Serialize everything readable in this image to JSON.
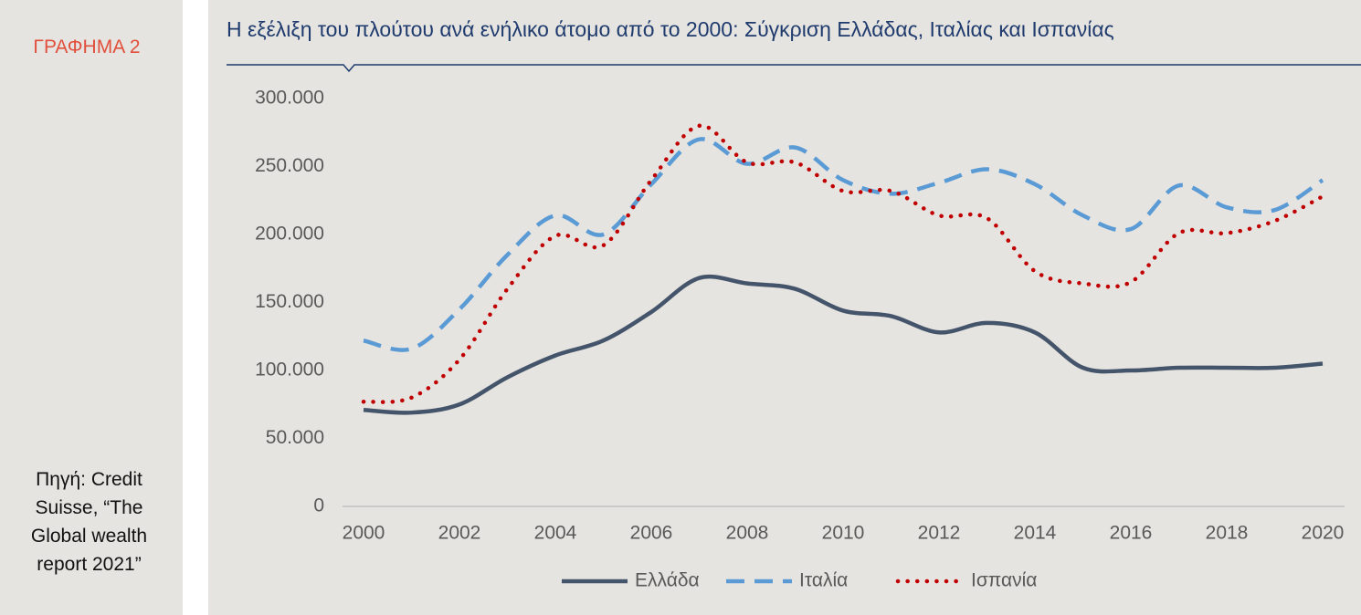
{
  "chart_data": {
    "type": "line",
    "label": "ΓΡΑΦΗΜΑ 2",
    "title": "Η εξέλιξη του πλούτου ανά ενήλικο άτομο από το 2000: Σύγκριση Ελλάδας, Ιταλίας και Ισπανίας",
    "source": "Πηγή: Credit Suisse, “The Global wealth report 2021”",
    "x": [
      2000,
      2001,
      2002,
      2003,
      2004,
      2005,
      2006,
      2007,
      2008,
      2009,
      2010,
      2011,
      2012,
      2013,
      2014,
      2015,
      2016,
      2017,
      2018,
      2019,
      2020
    ],
    "xlim": [
      2000,
      2020
    ],
    "xticks": [
      2000,
      2002,
      2004,
      2006,
      2008,
      2010,
      2012,
      2014,
      2016,
      2018,
      2020
    ],
    "ylim": [
      0,
      300000
    ],
    "yticks": [
      0,
      {
        "value": 50000,
        "label": "50.000"
      },
      {
        "value": 100000,
        "label": "100.000"
      },
      {
        "value": 150000,
        "label": "150.000"
      },
      {
        "value": 200000,
        "label": "200.000"
      },
      {
        "value": 250000,
        "label": "250.000"
      },
      {
        "value": 300000,
        "label": "300.000"
      }
    ],
    "grid": false,
    "legend": "bottom",
    "series": [
      {
        "name": "Ελλάδα",
        "color": "#44546a",
        "dash": "solid",
        "values": [
          71000,
          69000,
          75000,
          95000,
          111000,
          122000,
          143000,
          168000,
          164000,
          160000,
          144000,
          140000,
          128000,
          135000,
          128000,
          102000,
          100000,
          102000,
          102000,
          102000,
          105000
        ]
      },
      {
        "name": "Ιταλία",
        "color": "#5b9bd5",
        "dash": "dashed",
        "values": [
          122000,
          116000,
          145000,
          185000,
          214000,
          200000,
          237000,
          270000,
          252000,
          264000,
          240000,
          230000,
          238000,
          248000,
          237000,
          214000,
          204000,
          236000,
          220000,
          218000,
          240000
        ]
      },
      {
        "name": "Ισπανία",
        "color": "#c00000",
        "dash": "dotted",
        "values": [
          77000,
          80000,
          108000,
          160000,
          199000,
          192000,
          240000,
          280000,
          253000,
          253000,
          232000,
          232000,
          214000,
          212000,
          173000,
          164000,
          165000,
          201000,
          201000,
          210000,
          228000
        ]
      }
    ]
  }
}
